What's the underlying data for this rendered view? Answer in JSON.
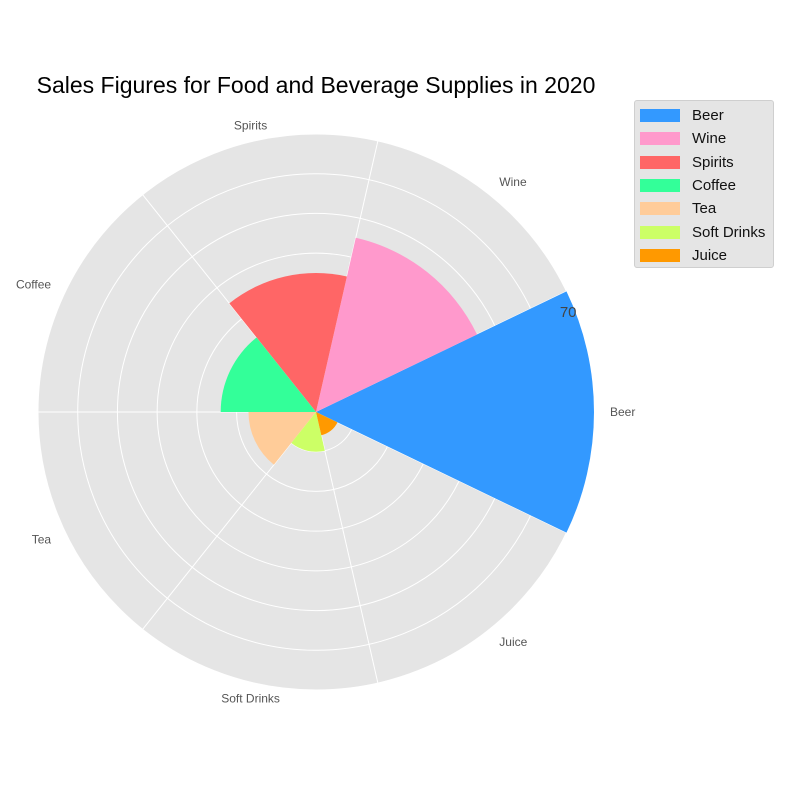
{
  "chart_data": {
    "type": "polar-bar",
    "title": "Sales Figures for Food and Beverage Supplies in 2020",
    "categories": [
      "Beer",
      "Wine",
      "Spirits",
      "Coffee",
      "Tea",
      "Soft Drinks",
      "Juice"
    ],
    "values": [
      70,
      45,
      35,
      24,
      17,
      10,
      6
    ],
    "colors": [
      "#3399ff",
      "#ff99cc",
      "#ff6666",
      "#33ff99",
      "#ffcc99",
      "#ccff66",
      "#ff9900"
    ],
    "rlim": [
      0,
      70
    ],
    "rticks": [
      10,
      20,
      30,
      40,
      50,
      60,
      70
    ],
    "visible_rtick_label": "70",
    "grid": true,
    "legend": {
      "placement": "upper-right outside",
      "entries": [
        "Beer",
        "Wine",
        "Spirits",
        "Coffee",
        "Tea",
        "Soft Drinks",
        "Juice"
      ]
    }
  }
}
